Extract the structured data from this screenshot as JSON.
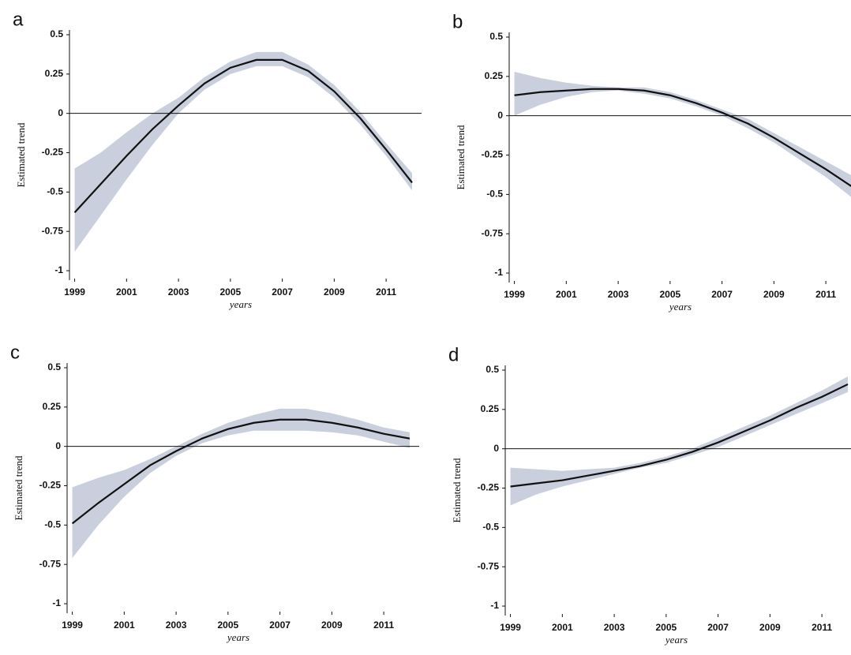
{
  "chart_data": [
    {
      "type": "line",
      "panel": "a",
      "y_label": "Estimated trend",
      "x_label": "years",
      "x": [
        1999,
        2000,
        2001,
        2002,
        2003,
        2004,
        2005,
        2006,
        2007,
        2008,
        2009,
        2010,
        2011,
        2012
      ],
      "values": [
        -0.63,
        -0.45,
        -0.27,
        -0.1,
        0.05,
        0.19,
        0.29,
        0.34,
        0.34,
        0.27,
        0.14,
        -0.03,
        -0.23,
        -0.44
      ],
      "lower": [
        -0.88,
        -0.65,
        -0.42,
        -0.2,
        0.0,
        0.15,
        0.25,
        0.3,
        0.3,
        0.23,
        0.1,
        -0.07,
        -0.27,
        -0.49
      ],
      "upper": [
        -0.35,
        -0.25,
        -0.12,
        0.0,
        0.1,
        0.23,
        0.33,
        0.39,
        0.39,
        0.31,
        0.18,
        0.01,
        -0.19,
        -0.38
      ],
      "color": "#111111",
      "band_color": "#c9cfdc",
      "reference_line": 0,
      "xlim": [
        1998.8,
        2012
      ],
      "xticks": [
        1999,
        2001,
        2003,
        2005,
        2007,
        2009,
        2011
      ],
      "ylim": [
        -1.05,
        0.52
      ],
      "yticks": [
        -1,
        -0.75,
        -0.5,
        -0.25,
        0,
        0.25,
        0.5
      ]
    },
    {
      "type": "line",
      "panel": "b",
      "y_label": "Estimated trend",
      "x_label": "years",
      "x": [
        1999,
        2000,
        2001,
        2002,
        2003,
        2004,
        2005,
        2006,
        2007,
        2008,
        2009,
        2010,
        2011,
        2012
      ],
      "values": [
        0.13,
        0.15,
        0.16,
        0.17,
        0.17,
        0.16,
        0.13,
        0.08,
        0.02,
        -0.05,
        -0.14,
        -0.24,
        -0.34,
        -0.45
      ],
      "lower": [
        0.0,
        0.07,
        0.12,
        0.15,
        0.16,
        0.14,
        0.11,
        0.06,
        0.0,
        -0.08,
        -0.17,
        -0.28,
        -0.39,
        -0.52
      ],
      "upper": [
        0.28,
        0.24,
        0.21,
        0.19,
        0.18,
        0.18,
        0.15,
        0.1,
        0.04,
        -0.02,
        -0.11,
        -0.2,
        -0.29,
        -0.38
      ],
      "color": "#111111",
      "band_color": "#c9cfdc",
      "reference_line": 0,
      "xlim": [
        1998.8,
        2012
      ],
      "xticks": [
        1999,
        2001,
        2003,
        2005,
        2007,
        2009,
        2011
      ],
      "ylim": [
        -1.05,
        0.52
      ],
      "yticks": [
        -1,
        -0.75,
        -0.5,
        -0.25,
        0,
        0.25,
        0.5
      ]
    },
    {
      "type": "line",
      "panel": "c",
      "y_label": "Estimated trend",
      "x_label": "years",
      "x": [
        1999,
        2000,
        2001,
        2002,
        2003,
        2004,
        2005,
        2006,
        2007,
        2008,
        2009,
        2010,
        2011,
        2012
      ],
      "values": [
        -0.49,
        -0.36,
        -0.24,
        -0.12,
        -0.03,
        0.05,
        0.11,
        0.15,
        0.17,
        0.17,
        0.15,
        0.12,
        0.08,
        0.05
      ],
      "lower": [
        -0.71,
        -0.5,
        -0.32,
        -0.17,
        -0.06,
        0.02,
        0.07,
        0.1,
        0.1,
        0.1,
        0.09,
        0.07,
        0.03,
        -0.01
      ],
      "upper": [
        -0.26,
        -0.2,
        -0.15,
        -0.08,
        0.0,
        0.08,
        0.15,
        0.2,
        0.24,
        0.24,
        0.21,
        0.17,
        0.12,
        0.09
      ],
      "color": "#111111",
      "band_color": "#c9cfdc",
      "reference_line": 0,
      "xlim": [
        1998.8,
        2012
      ],
      "xticks": [
        1999,
        2001,
        2003,
        2005,
        2007,
        2009,
        2011
      ],
      "ylim": [
        -1.05,
        0.52
      ],
      "yticks": [
        -1,
        -0.75,
        -0.5,
        -0.25,
        0,
        0.25,
        0.5
      ]
    },
    {
      "type": "line",
      "panel": "d",
      "y_label": "Estimated trend",
      "x_label": "years",
      "x": [
        1999,
        2000,
        2001,
        2002,
        2003,
        2004,
        2005,
        2006,
        2007,
        2008,
        2009,
        2010,
        2011,
        2012
      ],
      "values": [
        -0.24,
        -0.22,
        -0.2,
        -0.17,
        -0.14,
        -0.11,
        -0.07,
        -0.02,
        0.04,
        0.11,
        0.18,
        0.26,
        0.33,
        0.41
      ],
      "lower": [
        -0.36,
        -0.29,
        -0.24,
        -0.2,
        -0.16,
        -0.12,
        -0.09,
        -0.04,
        0.01,
        0.08,
        0.15,
        0.22,
        0.29,
        0.36
      ],
      "upper": [
        -0.12,
        -0.13,
        -0.14,
        -0.13,
        -0.12,
        -0.09,
        -0.05,
        0.0,
        0.07,
        0.14,
        0.21,
        0.29,
        0.37,
        0.46
      ],
      "color": "#111111",
      "band_color": "#c9cfdc",
      "reference_line": 0,
      "xlim": [
        1998.8,
        2012
      ],
      "xticks": [
        1999,
        2001,
        2003,
        2005,
        2007,
        2009,
        2011
      ],
      "ylim": [
        -1.05,
        0.52
      ],
      "yticks": [
        -1,
        -0.75,
        -0.5,
        -0.25,
        0,
        0.25,
        0.5
      ]
    }
  ]
}
